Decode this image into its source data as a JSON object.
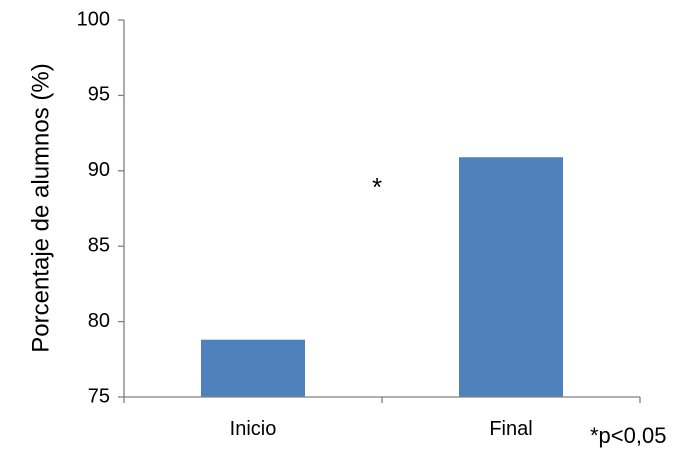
{
  "chart_data": {
    "type": "bar",
    "categories": [
      "Inicio",
      "Final"
    ],
    "values": [
      78.8,
      90.9
    ],
    "title": "",
    "xlabel": "",
    "ylabel": "Porcentaje de alumnos (%)",
    "ylim": [
      75,
      100
    ],
    "yticks": [
      75,
      80,
      85,
      90,
      95,
      100
    ],
    "grid": false,
    "bar_color": "#4f81bd",
    "significance_marker": "*",
    "footnote": "*p<0,05"
  }
}
